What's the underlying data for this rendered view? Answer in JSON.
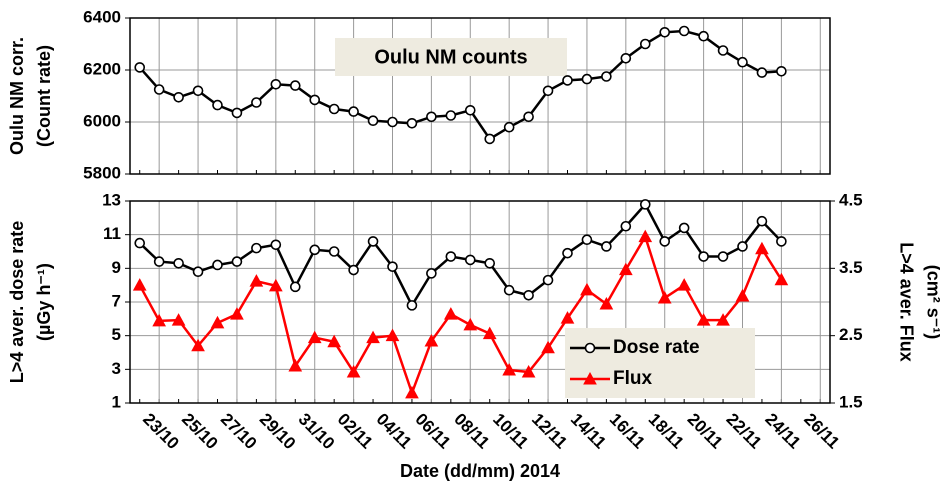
{
  "chart_data": {
    "type": "line",
    "grid": true,
    "xlabel": "Date (dd/mm) 2014",
    "categories": [
      null,
      "23/10",
      null,
      "25/10",
      null,
      "27/10",
      null,
      "29/10",
      null,
      "31/10",
      null,
      "02/11",
      null,
      "04/11",
      null,
      "06/11",
      null,
      "08/11",
      null,
      "10/11",
      null,
      "12/11",
      null,
      "14/11",
      null,
      "16/11",
      null,
      "18/11",
      null,
      "20/11",
      null,
      "22/11",
      null,
      "24/11",
      null,
      "26/11"
    ],
    "panels": [
      {
        "ylabel": [
          "Oulu NM corr.",
          "(Count rate)"
        ],
        "annotation": "Oulu NM counts",
        "ylim": [
          5800,
          6400
        ],
        "yticks": [
          5800,
          6000,
          6200,
          6400
        ],
        "series": [
          {
            "name": null,
            "color": "#000000",
            "marker": "circle",
            "values": [
              6210,
              6125,
              6095,
              6120,
              6065,
              6035,
              6075,
              6145,
              6140,
              6085,
              6050,
              6040,
              6005,
              6000,
              5995,
              6020,
              6025,
              6045,
              5935,
              5980,
              6020,
              6120,
              6160,
              6165,
              6175,
              6245,
              6300,
              6345,
              6350,
              6330,
              6275,
              6230,
              6190,
              6195,
              null,
              null
            ]
          }
        ]
      },
      {
        "ylabel": [
          "L>4 aver. dose rate",
          "(µGy h⁻¹)"
        ],
        "y2label": [
          "L>4 aver. Flux",
          "(cm² s⁻¹)"
        ],
        "ylim": [
          1,
          13
        ],
        "yticks": [
          1,
          3,
          5,
          7,
          9,
          11,
          13
        ],
        "y2lim": [
          1.5,
          4.5
        ],
        "y2ticks": [
          1.5,
          2.5,
          3.5,
          4.5
        ],
        "legend": "lower right",
        "series": [
          {
            "name": "Dose rate",
            "color": "#000000",
            "marker": "circle",
            "values": [
              10.5,
              9.4,
              9.3,
              8.8,
              9.2,
              9.4,
              10.2,
              10.4,
              7.9,
              10.1,
              10.0,
              8.9,
              10.6,
              9.1,
              6.8,
              8.7,
              9.7,
              9.5,
              9.3,
              7.7,
              7.4,
              8.3,
              9.9,
              10.7,
              10.3,
              11.5,
              12.8,
              10.6,
              11.4,
              9.7,
              9.7,
              10.3,
              11.8,
              10.6,
              null,
              null
            ]
          },
          {
            "name": "Flux",
            "color": "#ff0000",
            "marker": "triangle",
            "axis": "y2",
            "values": [
              3.25,
              2.72,
              2.73,
              2.35,
              2.69,
              2.82,
              3.31,
              3.24,
              2.05,
              2.47,
              2.41,
              1.96,
              2.47,
              2.5,
              1.65,
              2.42,
              2.82,
              2.66,
              2.53,
              1.99,
              1.96,
              2.32,
              2.76,
              3.18,
              2.97,
              3.48,
              3.97,
              3.06,
              3.25,
              2.73,
              2.73,
              3.09,
              3.79,
              3.33,
              null,
              null
            ]
          }
        ]
      }
    ]
  }
}
